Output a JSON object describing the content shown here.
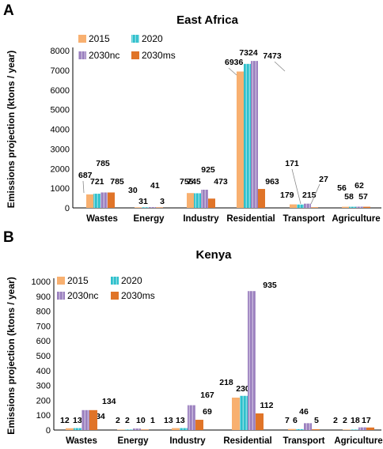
{
  "series_colors": {
    "2015": "#f8b070",
    "2020": "#2ec0cc",
    "2030nc": "#9b80bf",
    "2030ms": "#e07428"
  },
  "chart_data": [
    {
      "panel": "A",
      "type": "bar",
      "title": "East Africa",
      "ylabel": "Emissions  projection (ktons / year)",
      "categories": [
        "Wastes",
        "Energy",
        "Industry",
        "Residential",
        "Transport",
        "Agriculture"
      ],
      "ylim": [
        0,
        8000
      ],
      "yticks": [
        0,
        1000,
        2000,
        3000,
        4000,
        5000,
        6000,
        7000,
        8000
      ],
      "legend": "top-left",
      "series": [
        {
          "name": "2015",
          "values": [
            687,
            30,
            755,
            6936,
            179,
            56
          ]
        },
        {
          "name": "2020",
          "values": [
            721,
            31,
            745,
            7324,
            171,
            58
          ]
        },
        {
          "name": "2030nc",
          "values": [
            785,
            41,
            925,
            7473,
            215,
            62
          ]
        },
        {
          "name": "2030ms",
          "values": [
            785,
            3,
            473,
            963,
            27,
            57
          ]
        }
      ]
    },
    {
      "panel": "B",
      "type": "bar",
      "title": "Kenya",
      "ylabel": "Emissions  projection (ktons / year)",
      "categories": [
        "Wastes",
        "Energy",
        "Industry",
        "Residential",
        "Transport",
        "Agriculture"
      ],
      "ylim": [
        0,
        1000
      ],
      "yticks": [
        0,
        100,
        200,
        300,
        400,
        500,
        600,
        700,
        800,
        900,
        1000
      ],
      "legend": "top-left",
      "series": [
        {
          "name": "2015",
          "values": [
            12,
            2,
            13,
            218,
            7,
            2
          ]
        },
        {
          "name": "2020",
          "values": [
            13,
            2,
            13,
            230,
            6,
            2
          ]
        },
        {
          "name": "2030nc",
          "values": [
            134,
            10,
            167,
            935,
            46,
            18
          ]
        },
        {
          "name": "2030ms",
          "values": [
            134,
            1,
            69,
            112,
            5,
            17
          ]
        }
      ]
    }
  ]
}
